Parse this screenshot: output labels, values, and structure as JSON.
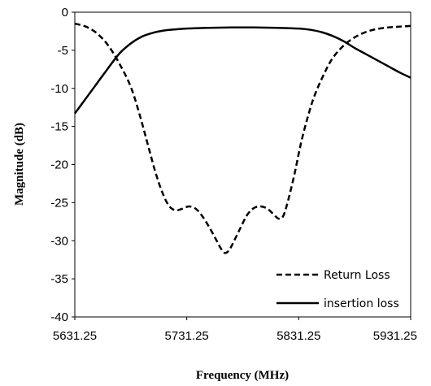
{
  "chart_data": {
    "type": "line",
    "title": "",
    "xlabel": "Frequency (MHz)",
    "ylabel": "Magnitude (dB)",
    "xlim": [
      5631.25,
      5931.25
    ],
    "ylim": [
      -40,
      0
    ],
    "x_ticks": [
      "5631.25",
      "5731.25",
      "5831.25",
      "5931.25"
    ],
    "y_ticks": [
      "0",
      "-5",
      "-10",
      "-15",
      "-20",
      "-25",
      "-30",
      "-35",
      "-40"
    ],
    "grid": false,
    "legend_position": "bottom-right",
    "series": [
      {
        "name": "Return Loss",
        "style": "dashed",
        "color": "#000000",
        "points": [
          [
            5631.25,
            -1.5
          ],
          [
            5641.25,
            -1.9
          ],
          [
            5651.25,
            -2.8
          ],
          [
            5661.25,
            -4.4
          ],
          [
            5671.25,
            -6.8
          ],
          [
            5681.25,
            -9.8
          ],
          [
            5689.25,
            -13.5
          ],
          [
            5697.25,
            -17.8
          ],
          [
            5703.25,
            -21.0
          ],
          [
            5709.25,
            -23.6
          ],
          [
            5715.25,
            -25.4
          ],
          [
            5721.25,
            -26.0
          ],
          [
            5727.25,
            -25.8
          ],
          [
            5733.25,
            -25.5
          ],
          [
            5739.25,
            -25.8
          ],
          [
            5745.25,
            -26.8
          ],
          [
            5751.25,
            -28.2
          ],
          [
            5757.25,
            -29.8
          ],
          [
            5761.25,
            -30.9
          ],
          [
            5765.25,
            -31.6
          ],
          [
            5769.25,
            -31.2
          ],
          [
            5773.25,
            -30.1
          ],
          [
            5779.25,
            -28.3
          ],
          [
            5785.25,
            -26.6
          ],
          [
            5791.25,
            -25.7
          ],
          [
            5797.25,
            -25.5
          ],
          [
            5803.25,
            -25.8
          ],
          [
            5809.25,
            -26.6
          ],
          [
            5813.25,
            -27.1
          ],
          [
            5817.25,
            -26.8
          ],
          [
            5821.25,
            -25.0
          ],
          [
            5827.25,
            -21.4
          ],
          [
            5833.25,
            -17.2
          ],
          [
            5839.25,
            -13.8
          ],
          [
            5845.25,
            -11.0
          ],
          [
            5853.25,
            -8.3
          ],
          [
            5861.25,
            -6.1
          ],
          [
            5871.25,
            -4.4
          ],
          [
            5881.25,
            -3.3
          ],
          [
            5891.25,
            -2.6
          ],
          [
            5901.25,
            -2.2
          ],
          [
            5911.25,
            -2.0
          ],
          [
            5921.25,
            -1.9
          ],
          [
            5931.25,
            -1.8
          ]
        ]
      },
      {
        "name": "insertion loss",
        "style": "solid",
        "color": "#000000",
        "points": [
          [
            5631.25,
            -13.3
          ],
          [
            5641.25,
            -11.3
          ],
          [
            5651.25,
            -9.3
          ],
          [
            5661.25,
            -7.3
          ],
          [
            5671.25,
            -5.4
          ],
          [
            5681.25,
            -4.1
          ],
          [
            5691.25,
            -3.2
          ],
          [
            5701.25,
            -2.7
          ],
          [
            5711.25,
            -2.4
          ],
          [
            5721.25,
            -2.25
          ],
          [
            5731.25,
            -2.15
          ],
          [
            5751.25,
            -2.05
          ],
          [
            5771.25,
            -2.0
          ],
          [
            5791.25,
            -2.0
          ],
          [
            5811.25,
            -2.05
          ],
          [
            5831.25,
            -2.15
          ],
          [
            5841.25,
            -2.3
          ],
          [
            5851.25,
            -2.6
          ],
          [
            5861.25,
            -3.1
          ],
          [
            5871.25,
            -3.8
          ],
          [
            5881.25,
            -4.7
          ],
          [
            5891.25,
            -5.5
          ],
          [
            5901.25,
            -6.3
          ],
          [
            5911.25,
            -7.1
          ],
          [
            5921.25,
            -7.9
          ],
          [
            5931.25,
            -8.6
          ]
        ]
      }
    ]
  }
}
